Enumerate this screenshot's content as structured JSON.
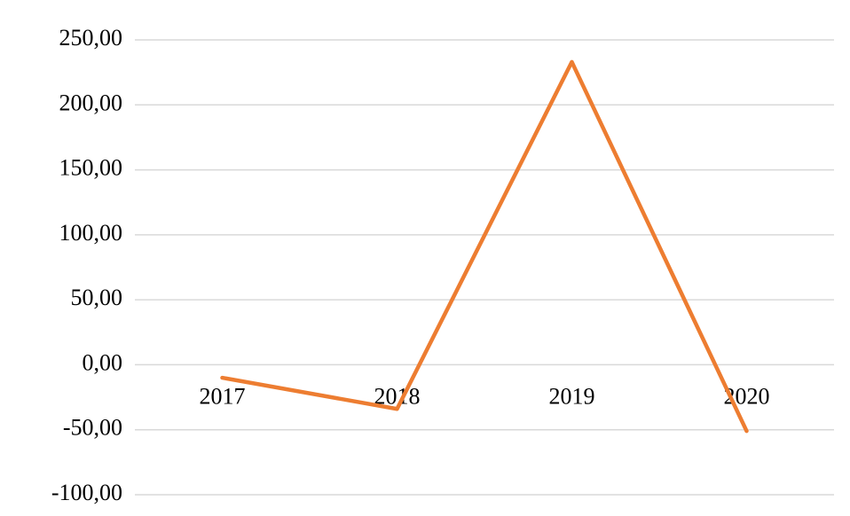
{
  "chart_data": {
    "type": "line",
    "categories": [
      "2017",
      "2018",
      "2019",
      "2020"
    ],
    "series": [
      {
        "name": null,
        "color": "#ed7d31",
        "values": [
          -10,
          -34,
          233,
          -51
        ]
      }
    ],
    "ylim": [
      -100,
      250
    ],
    "yticks": [
      {
        "value": -100,
        "label": "-100,00"
      },
      {
        "value": -50,
        "label": "-50,00"
      },
      {
        "value": 0,
        "label": "0,00"
      },
      {
        "value": 50,
        "label": "50,00"
      },
      {
        "value": 100,
        "label": "100,00"
      },
      {
        "value": 150,
        "label": "150,00"
      },
      {
        "value": 200,
        "label": "200,00"
      },
      {
        "value": 250,
        "label": "250,00"
      }
    ],
    "grid": true
  }
}
